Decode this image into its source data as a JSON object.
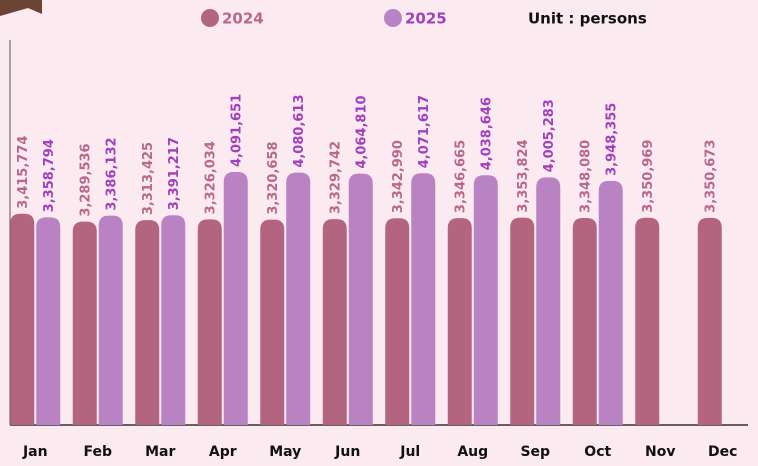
{
  "chart_data": {
    "type": "bar",
    "annotation": "Unit : persons",
    "categories": [
      "Jan",
      "Feb",
      "Mar",
      "Apr",
      "May",
      "Jun",
      "Jul",
      "Aug",
      "Sep",
      "Oct",
      "Nov",
      "Dec"
    ],
    "series": [
      {
        "name": "2024",
        "color": "#b3657f",
        "label_color": "#b8688a",
        "values": [
          3415774,
          3289536,
          3313425,
          3326034,
          3320658,
          3329742,
          3342990,
          3346665,
          3353824,
          3348080,
          3350969,
          3350673
        ],
        "value_labels": [
          "3,415,774",
          "3,289,536",
          "3,313,425",
          "3,326,034",
          "3,320,658",
          "3,329,742",
          "3,342,990",
          "3,346,665",
          "3,353,824",
          "3,348,080",
          "3,350,969",
          "3,350,673"
        ]
      },
      {
        "name": "2025",
        "color": "#b882c3",
        "label_color": "#a23fbe",
        "values": [
          3358794,
          3386132,
          3391217,
          4091651,
          4080613,
          4064810,
          4071617,
          4038646,
          4005283,
          3948355,
          null,
          null
        ],
        "value_labels": [
          "3,358,794",
          "3,386,132",
          "3,391,217",
          "4,091,651",
          "4,080,613",
          "4,064,810",
          "4,071,617",
          "4,038,646",
          "4,005,283",
          "3,948,355",
          null,
          null
        ]
      }
    ],
    "ylim": [
      0,
      6000000
    ]
  }
}
